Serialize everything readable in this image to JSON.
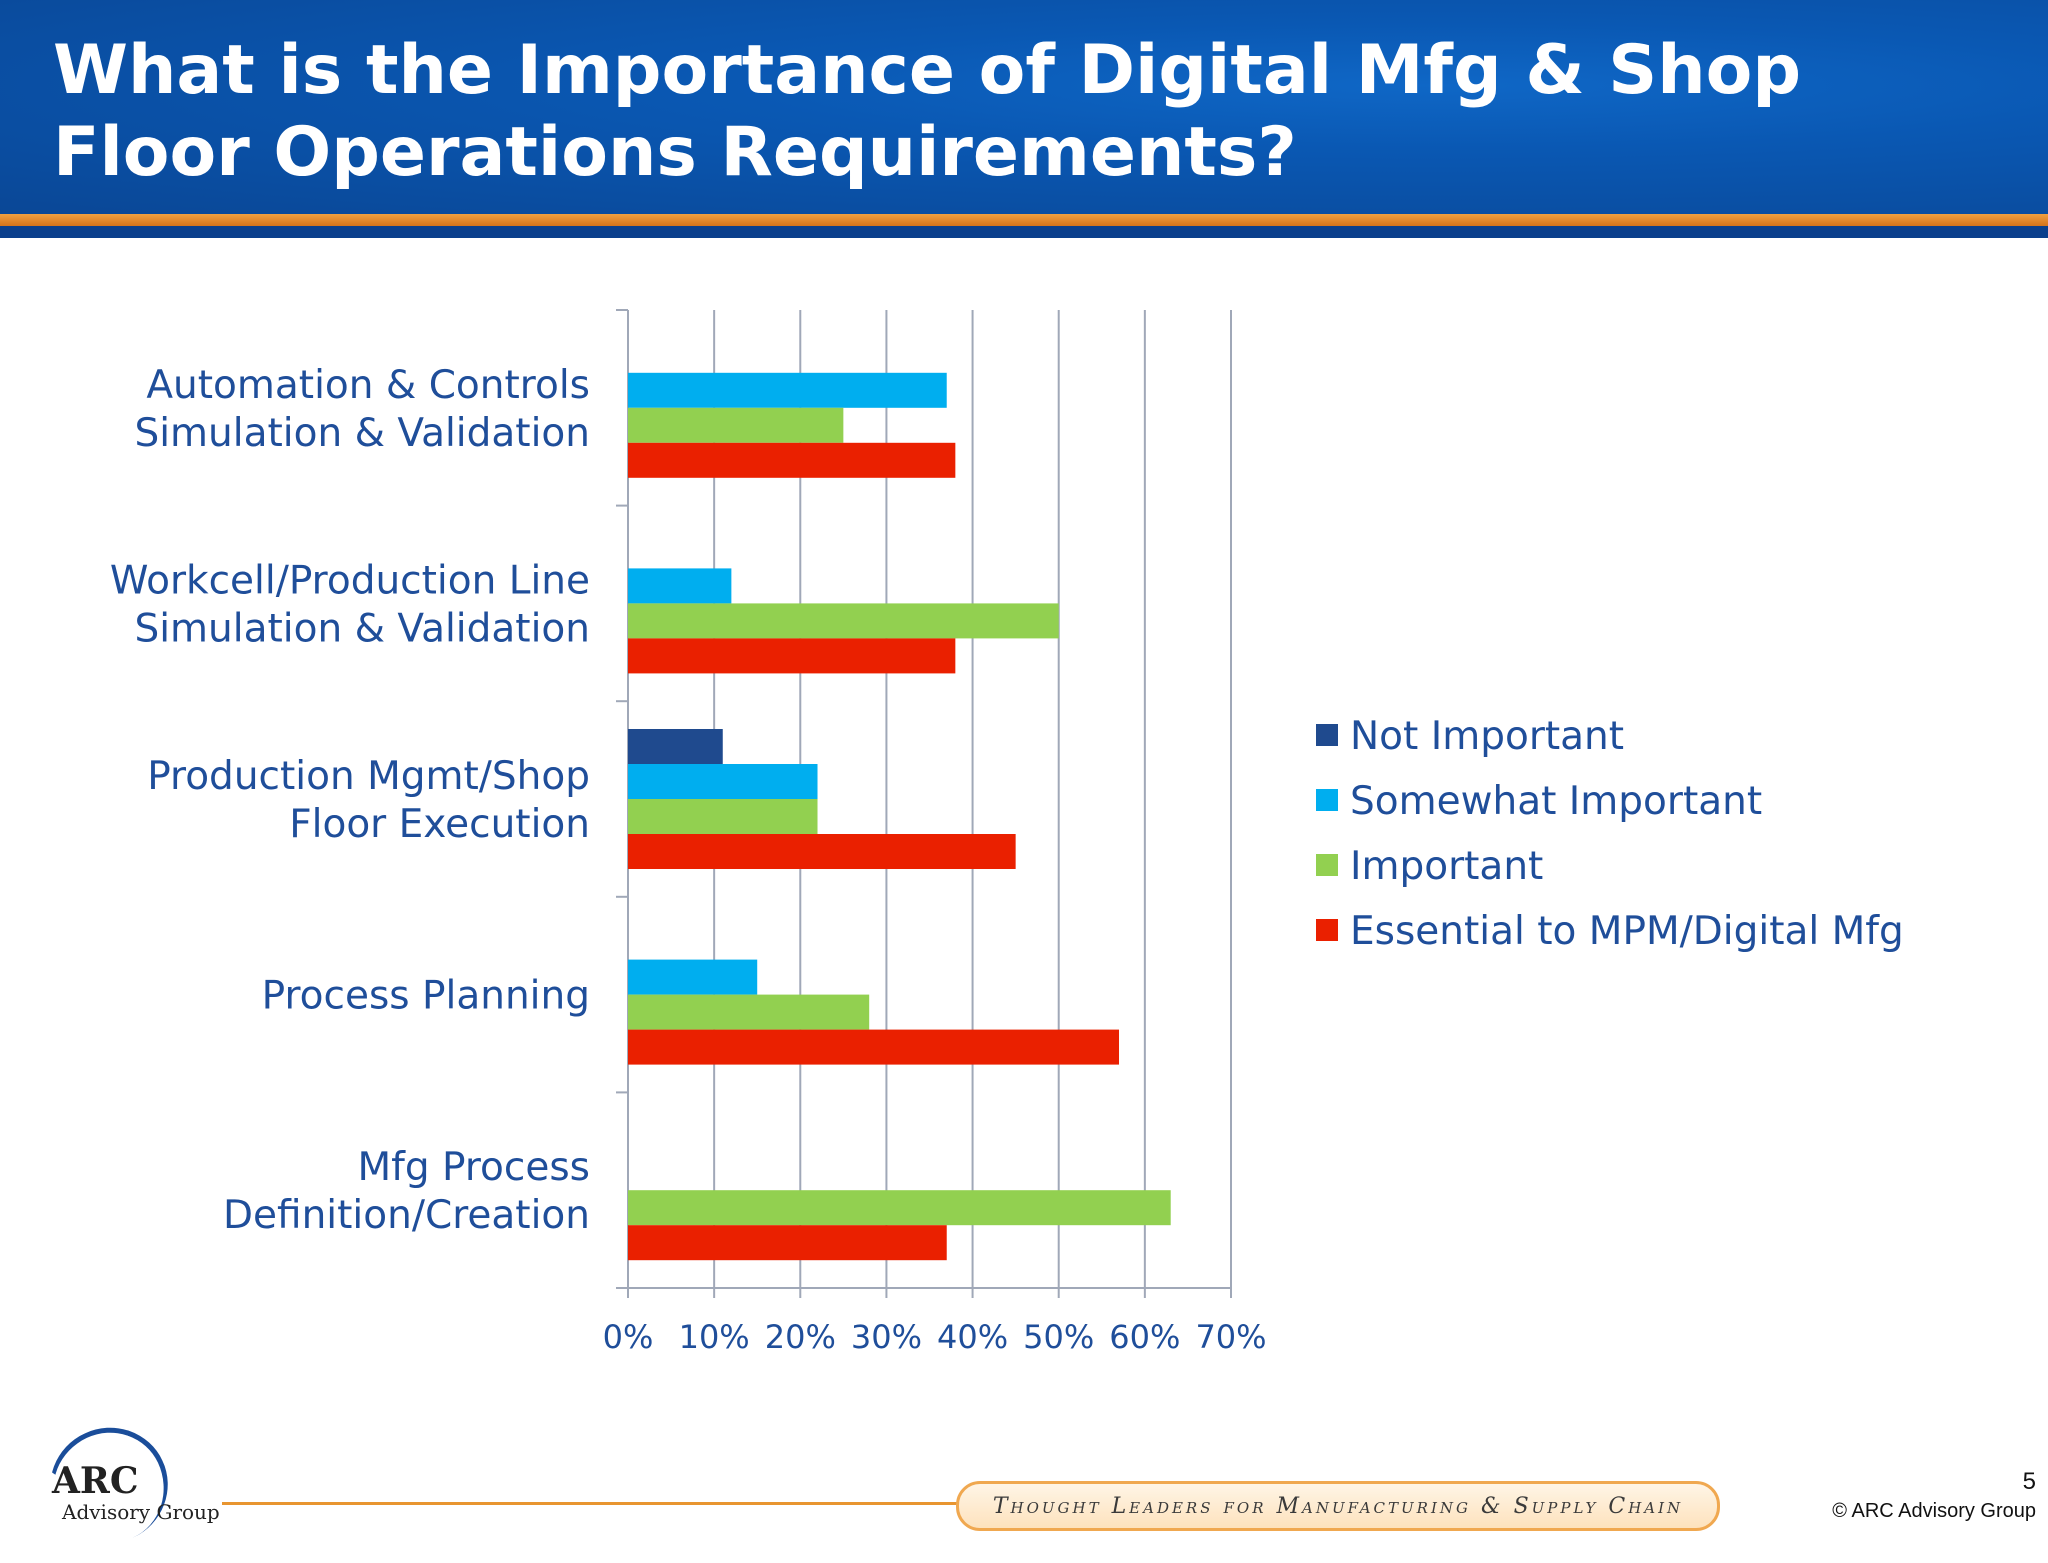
{
  "slide": {
    "title": "What is the Importance of Digital Mfg & Shop\nFloor Operations Requirements?",
    "page_number": "5",
    "copyright": "© ARC Advisory Group",
    "tagline": "Thought Leaders for Manufacturing & Supply Chain",
    "logo_text": "ARC",
    "logo_subtext": "Advisory Group"
  },
  "colors": {
    "Not Important": "#1f4a8e",
    "Somewhat Important": "#00aeef",
    "Important": "#92d050",
    "Essential to MPM/Digital Mfg": "#ea2000",
    "axis": "#a0a8b8",
    "label": "#1f4e9a"
  },
  "chart_data": {
    "type": "bar",
    "orientation": "horizontal",
    "categories": [
      "Automation & Controls\nSimulation & Validation",
      "Workcell/Production Line\nSimulation & Validation",
      "Production Mgmt/Shop\nFloor Execution",
      "Process Planning",
      "Mfg Process\nDefinition/Creation"
    ],
    "series": [
      {
        "name": "Not Important",
        "values": [
          0,
          0,
          11,
          0,
          0
        ]
      },
      {
        "name": "Somewhat Important",
        "values": [
          37,
          12,
          22,
          15,
          0
        ]
      },
      {
        "name": "Important",
        "values": [
          25,
          50,
          22,
          28,
          63
        ]
      },
      {
        "name": "Essential to MPM/Digital Mfg",
        "values": [
          38,
          38,
          45,
          57,
          37
        ]
      }
    ],
    "xlim": [
      0,
      70
    ],
    "xticks": [
      "0%",
      "10%",
      "20%",
      "30%",
      "40%",
      "50%",
      "60%",
      "70%"
    ],
    "grid": true,
    "legend": "right"
  }
}
